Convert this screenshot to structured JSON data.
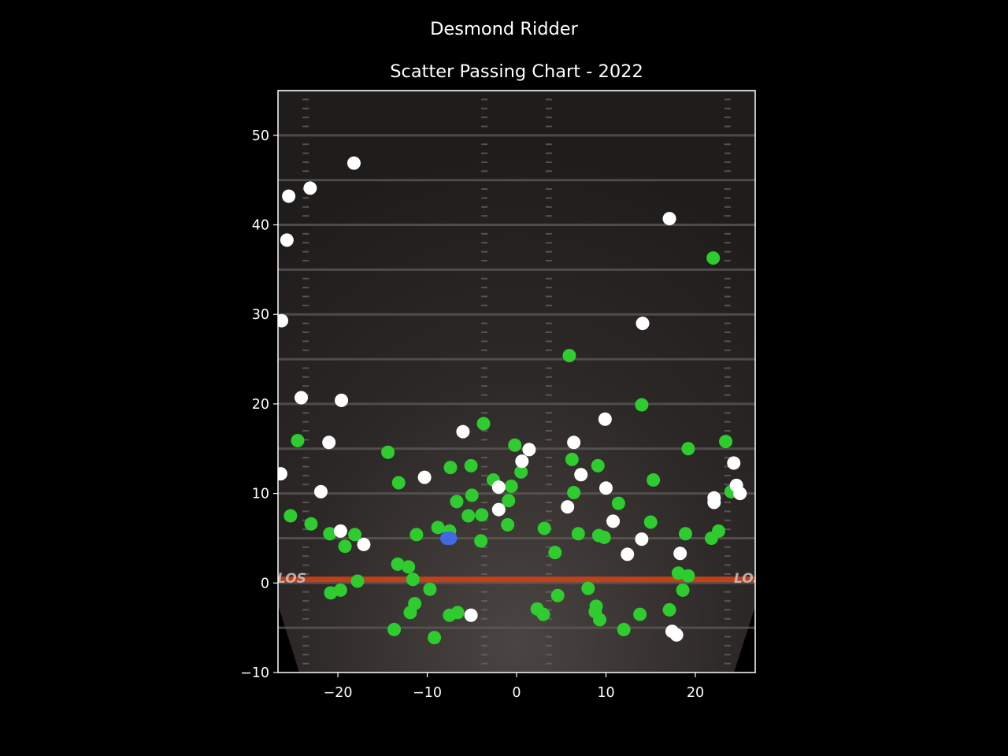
{
  "chart_data": {
    "type": "scatter",
    "title": "Desmond Ridder",
    "subtitle": "Scatter Passing Chart - 2022",
    "xlabel": "",
    "ylabel": "",
    "xlim": [
      -26.7,
      26.7
    ],
    "ylim": [
      -10,
      55
    ],
    "x_ticks": [
      "−20",
      "−10",
      "0",
      "10",
      "20"
    ],
    "y_ticks": [
      "−10",
      "0",
      "10",
      "20",
      "30",
      "40",
      "50"
    ],
    "grid": false,
    "background": "football-field",
    "field_text": [
      "LOS",
      "LOS"
    ],
    "colors": {
      "complete": "#2ecc2e",
      "incomplete": "#ffffff",
      "touchdown": "#4169e1",
      "line_of_scrimmage": "#c0401a"
    },
    "series": [
      {
        "key": "complete",
        "points": [
          [
            -25.3,
            7.5
          ],
          [
            -23,
            6.6
          ],
          [
            -24.5,
            15.9
          ],
          [
            -20.9,
            5.5
          ],
          [
            -19.2,
            4.1
          ],
          [
            -18.1,
            5.4
          ],
          [
            -20.8,
            -1.1
          ],
          [
            -19.7,
            -0.8
          ],
          [
            -17.8,
            0.2
          ],
          [
            -14.4,
            14.6
          ],
          [
            -13.2,
            11.2
          ],
          [
            -13.7,
            -5.2
          ],
          [
            -13.3,
            2.1
          ],
          [
            -12.1,
            1.8
          ],
          [
            -11.6,
            0.4
          ],
          [
            -11.4,
            -2.3
          ],
          [
            -11.9,
            -3.3
          ],
          [
            -11.2,
            5.4
          ],
          [
            -9.7,
            -0.7
          ],
          [
            -9.2,
            -6.1
          ],
          [
            -8.8,
            6.2
          ],
          [
            -7.5,
            5.8
          ],
          [
            -7.4,
            12.9
          ],
          [
            -7.5,
            -3.6
          ],
          [
            -6.7,
            9.1
          ],
          [
            -6.6,
            -3.3
          ],
          [
            -5.4,
            7.5
          ],
          [
            -5.1,
            13.1
          ],
          [
            -5,
            9.8
          ],
          [
            -3.7,
            17.8
          ],
          [
            -3.9,
            7.6
          ],
          [
            -4,
            4.7
          ],
          [
            -2.6,
            11.5
          ],
          [
            -0.6,
            10.8
          ],
          [
            -0.9,
            9.2
          ],
          [
            -1,
            6.5
          ],
          [
            -0.2,
            15.4
          ],
          [
            0.5,
            12.4
          ],
          [
            3.1,
            6.1
          ],
          [
            2.3,
            -2.9
          ],
          [
            3,
            -3.5
          ],
          [
            4.3,
            3.4
          ],
          [
            4.6,
            -1.4
          ],
          [
            5.9,
            25.4
          ],
          [
            6.2,
            13.8
          ],
          [
            6.4,
            10.1
          ],
          [
            6.9,
            5.5
          ],
          [
            8,
            -0.6
          ],
          [
            8.8,
            -3.2
          ],
          [
            8.9,
            -2.6
          ],
          [
            9.3,
            -4.1
          ],
          [
            9.1,
            13.1
          ],
          [
            9.2,
            5.3
          ],
          [
            9.8,
            5.1
          ],
          [
            11.4,
            8.9
          ],
          [
            12,
            -5.2
          ],
          [
            13.8,
            -3.5
          ],
          [
            14,
            19.9
          ],
          [
            15,
            6.8
          ],
          [
            15.3,
            11.5
          ],
          [
            17.1,
            -3
          ],
          [
            18.1,
            1.1
          ],
          [
            18.6,
            -0.8
          ],
          [
            19.2,
            0.8
          ],
          [
            18.9,
            5.5
          ],
          [
            19.2,
            15
          ],
          [
            22,
            36.3
          ],
          [
            21.8,
            5
          ],
          [
            22.6,
            5.8
          ],
          [
            23.4,
            15.8
          ],
          [
            24,
            10.2
          ]
        ]
      },
      {
        "key": "incomplete",
        "points": [
          [
            -18.2,
            46.9
          ],
          [
            -25.5,
            43.2
          ],
          [
            -23.1,
            44.1
          ],
          [
            -25.7,
            38.3
          ],
          [
            -26.3,
            29.3
          ],
          [
            -24.1,
            20.7
          ],
          [
            -19.6,
            20.4
          ],
          [
            -21,
            15.7
          ],
          [
            -26.4,
            12.2
          ],
          [
            -21.9,
            10.2
          ],
          [
            -19.7,
            5.8
          ],
          [
            -17.1,
            4.3
          ],
          [
            -10.3,
            11.8
          ],
          [
            -6,
            16.9
          ],
          [
            -5.1,
            -3.6
          ],
          [
            -2,
            10.7
          ],
          [
            -2,
            8.2
          ],
          [
            0.6,
            13.6
          ],
          [
            1.4,
            14.9
          ],
          [
            5.7,
            8.5
          ],
          [
            6.4,
            15.7
          ],
          [
            7.2,
            12.1
          ],
          [
            9.9,
            18.3
          ],
          [
            10,
            10.6
          ],
          [
            10.8,
            6.9
          ],
          [
            12.4,
            3.2
          ],
          [
            14.1,
            29
          ],
          [
            14,
            4.9
          ],
          [
            17.1,
            40.7
          ],
          [
            17.4,
            -5.4
          ],
          [
            17.9,
            -5.8
          ],
          [
            18.3,
            3.3
          ],
          [
            22.1,
            9.5
          ],
          [
            22.1,
            9
          ],
          [
            24.3,
            13.4
          ],
          [
            24.6,
            10.9
          ],
          [
            25,
            10
          ]
        ]
      },
      {
        "key": "touchdown",
        "points": [
          [
            -7.8,
            5
          ],
          [
            -7.4,
            5
          ]
        ]
      }
    ]
  }
}
